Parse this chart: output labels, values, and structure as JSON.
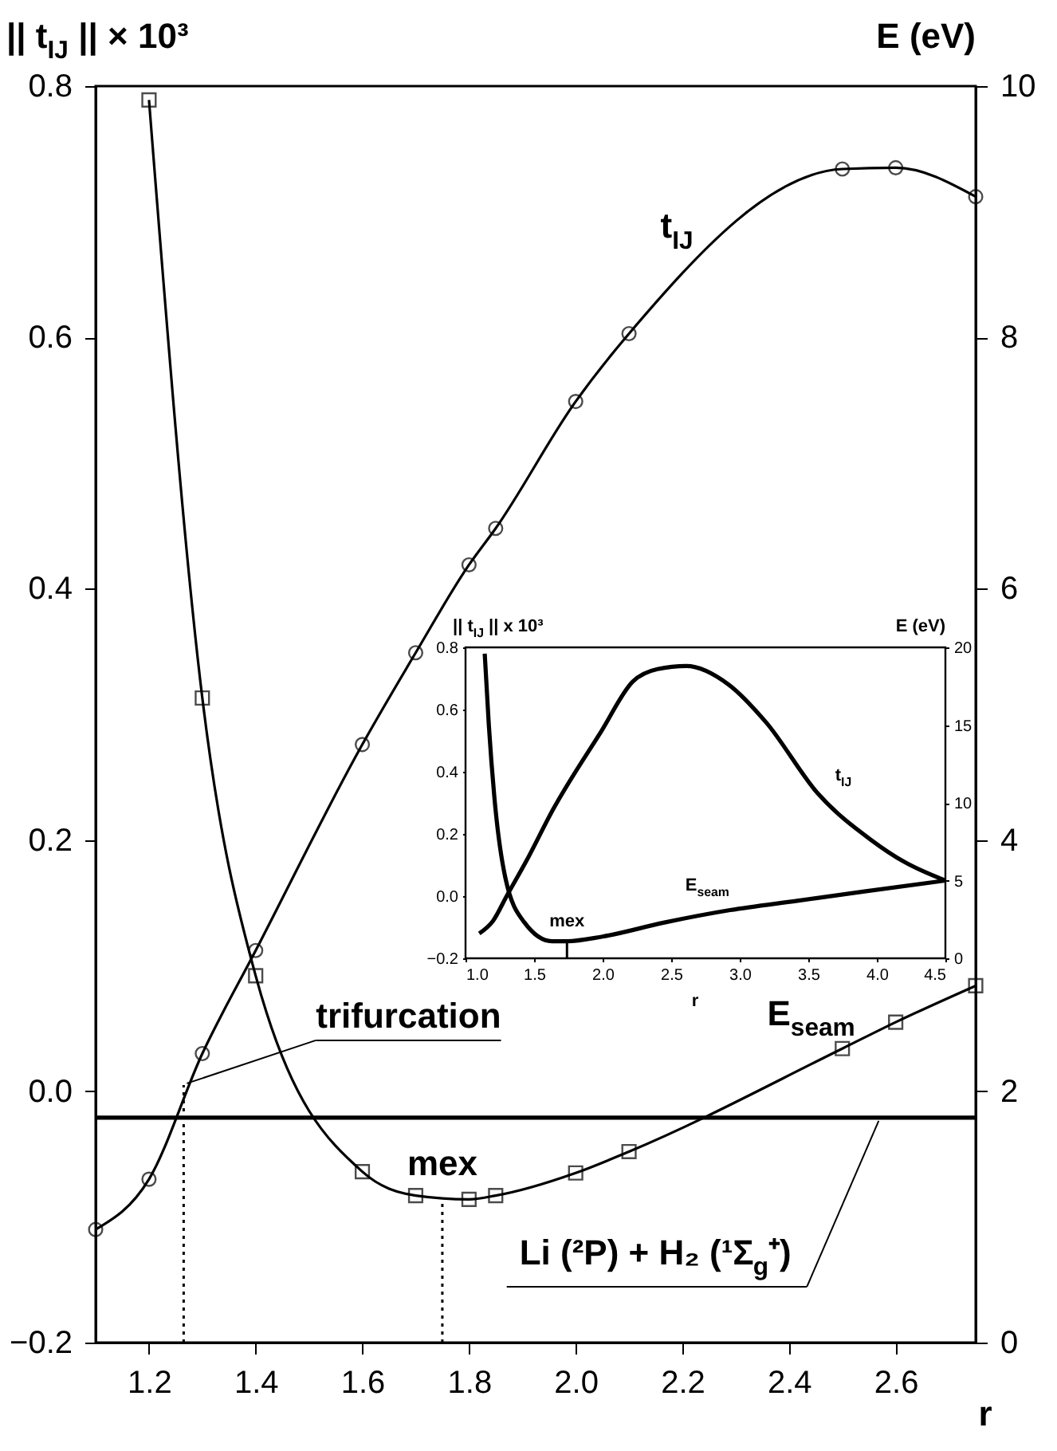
{
  "chart_data": [
    {
      "type": "line",
      "xlabel": "r",
      "ylabel": "|| t$_{IJ}$ || × 10³",
      "y2label": "E (eV)",
      "xlim": [
        1.1,
        2.75
      ],
      "xticks": [
        1.2,
        1.4,
        1.6,
        1.8,
        {
          "value": 2,
          "label": "2.0"
        },
        2.2,
        2.4,
        2.6
      ],
      "ylim": [
        -0.2,
        0.8
      ],
      "yticks": [
        -0.2,
        {
          "value": 0,
          "label": "0.0"
        },
        0.2,
        0.4,
        0.6,
        0.8
      ],
      "y2lim": [
        0,
        10
      ],
      "y2ticks": [
        0,
        2,
        4,
        6,
        8,
        10
      ],
      "series": [
        {
          "name": "t$_{IJ}$",
          "color": "#000000",
          "marker": "circle",
          "line_style": "solid",
          "axis": "y",
          "x": [
            1.1,
            1.2,
            1.3,
            1.4,
            1.6,
            1.7,
            1.8,
            1.85,
            2.0,
            2.1,
            2.5,
            2.6,
            2.75
          ],
          "values": [
            -0.11,
            -0.07,
            0.03,
            0.112,
            0.276,
            0.349,
            0.419,
            0.448,
            0.549,
            0.603,
            0.734,
            0.735,
            0.712
          ]
        },
        {
          "name": "E$_{seam}$",
          "color": "#000000",
          "marker": "square",
          "line_style": "solid",
          "axis": "y2",
          "x": [
            1.2,
            1.3,
            1.4,
            1.6,
            1.7,
            1.8,
            1.85,
            2.0,
            2.1,
            2.5,
            2.6,
            2.75
          ],
          "values": [
            9.89,
            5.13,
            2.92,
            1.36,
            1.17,
            1.14,
            1.17,
            1.35,
            1.52,
            2.34,
            2.55,
            2.84
          ]
        },
        {
          "color": "#000000",
          "marker": "none",
          "line_style": "dotted",
          "axis": "y",
          "x": [
            1.265,
            1.265
          ],
          "values": [
            -0.2,
            0.005
          ]
        },
        {
          "color": "#000000",
          "marker": "none",
          "line_style": "dotted",
          "axis": "y",
          "x": [
            1.75,
            1.75
          ],
          "values": [
            -0.2,
            -0.087
          ]
        }
      ],
      "ref_lines": [
        {
          "axis": "y2",
          "value": 1.79,
          "label": "Li (²P) + H₂ (¹Σ$_{g}$⁺)",
          "color": "#000000",
          "line_style": "solid"
        }
      ],
      "annotations": [
        {
          "text": "trifurcation",
          "x": 1.265,
          "y": 0.005
        },
        {
          "text": "mex",
          "x": 1.75,
          "y": -0.087
        }
      ]
    },
    {
      "type": "line",
      "xlabel": "r",
      "ylabel": "|| t$_{IJ}$ || x 10³",
      "y2label": "E (eV)",
      "xlim": [
        1.0,
        4.5
      ],
      "xticks": [
        {
          "value": 1,
          "label": "1.0"
        },
        1.5,
        {
          "value": 2,
          "label": "2.0"
        },
        2.5,
        {
          "value": 3,
          "label": "3.0"
        },
        3.5,
        {
          "value": 4,
          "label": "4.0"
        },
        4.5
      ],
      "ylim": [
        -0.2,
        0.8
      ],
      "yticks": [
        -0.2,
        {
          "value": 0,
          "label": "0.0"
        },
        0.2,
        0.4,
        0.6,
        0.8
      ],
      "y2lim": [
        0,
        20
      ],
      "y2ticks": [
        0,
        5,
        10,
        15,
        20
      ],
      "series": [
        {
          "name": "t$_{IJ}$",
          "color": "#000000",
          "marker": "none",
          "line_style": "solid",
          "axis": "y",
          "x": [
            1.1,
            1.2,
            1.3,
            1.44,
            1.64,
            1.99,
            2.22,
            2.4,
            2.61,
            2.92,
            3.19,
            3.57,
            3.96,
            4.2,
            4.5
          ],
          "values": [
            -0.12,
            -0.08,
            0.0,
            0.11,
            0.28,
            0.53,
            0.69,
            0.73,
            0.74,
            0.68,
            0.56,
            0.33,
            0.18,
            0.11,
            0.05
          ]
        },
        {
          "name": "E$_{seam}$",
          "color": "#000000",
          "marker": "none",
          "line_style": "solid",
          "axis": "y2",
          "x": [
            1.14,
            1.17,
            1.21,
            1.29,
            1.43,
            1.63,
            1.74,
            2.0,
            2.45,
            2.93,
            3.42,
            3.91,
            4.5
          ],
          "values": [
            19.6,
            15,
            10.4,
            5.2,
            2.3,
            1.1,
            1.1,
            1.4,
            2.3,
            3.1,
            3.7,
            4.3,
            5.0
          ]
        }
      ],
      "annotations": [
        {
          "text": "mex",
          "x": 1.74,
          "y": -0.144
        }
      ]
    }
  ]
}
